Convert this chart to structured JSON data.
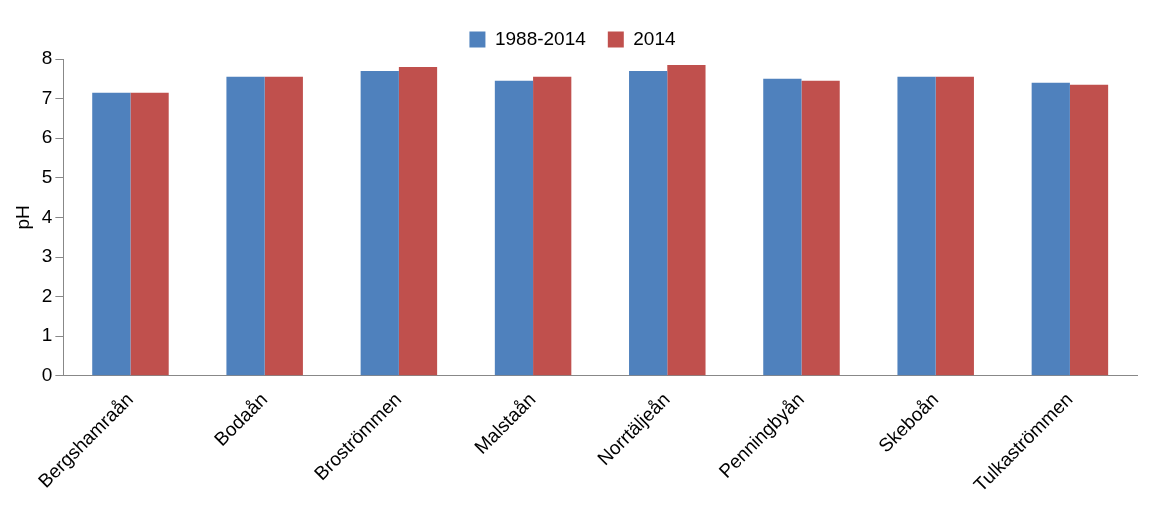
{
  "chart_data": {
    "type": "bar",
    "ylabel": "pH",
    "categories": [
      "Bergshamraån",
      "Bodaån",
      "Broströmmen",
      "Malstaån",
      "Norrtäljeån",
      "Penningbyån",
      "Skeboån",
      "Tulkaströmmen"
    ],
    "series": [
      {
        "name": "1988-2014",
        "color": "#4f81bd",
        "values": [
          7.15,
          7.55,
          7.7,
          7.45,
          7.7,
          7.5,
          7.55,
          7.4
        ]
      },
      {
        "name": "2014",
        "color": "#c0504d",
        "values": [
          7.15,
          7.55,
          7.8,
          7.55,
          7.85,
          7.45,
          7.55,
          7.35
        ]
      }
    ],
    "ylim": [
      0,
      8
    ],
    "yticks": [
      0,
      1,
      2,
      3,
      4,
      5,
      6,
      7,
      8
    ],
    "grid": false,
    "legend": "top"
  }
}
